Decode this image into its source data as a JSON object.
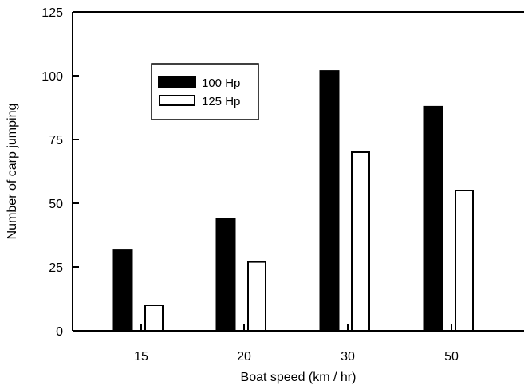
{
  "chart_data": {
    "type": "bar",
    "title": "",
    "xlabel": "Boat speed (km / hr)",
    "ylabel": "Number of carp jumping",
    "categories": [
      "15",
      "20",
      "30",
      "50"
    ],
    "series": [
      {
        "name": "100 Hp",
        "values": [
          32,
          44,
          102,
          88
        ],
        "color": "#000000",
        "fill": "solid"
      },
      {
        "name": "125 Hp",
        "values": [
          10,
          27,
          70,
          55
        ],
        "color": "#ffffff",
        "fill": "outline"
      }
    ],
    "ylim": [
      0,
      125
    ],
    "yticks": [
      "0",
      "25",
      "50",
      "75",
      "100",
      "125"
    ],
    "grid": false,
    "legend": "top-left"
  }
}
